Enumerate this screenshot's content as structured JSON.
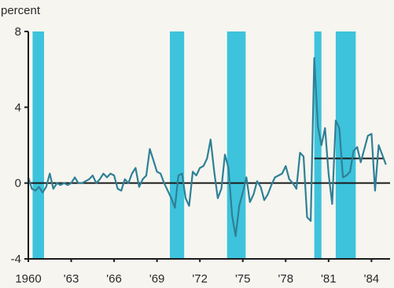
{
  "chart_data": {
    "type": "line",
    "y_unit_label": "percent",
    "xlim": [
      1960,
      1985.3
    ],
    "ylim": [
      -4,
      8
    ],
    "x_ticks": [
      {
        "value": 1960,
        "label": "1960"
      },
      {
        "value": 1963,
        "label": "'63"
      },
      {
        "value": 1966,
        "label": "'66"
      },
      {
        "value": 1969,
        "label": "'69"
      },
      {
        "value": 1972,
        "label": "'72"
      },
      {
        "value": 1975,
        "label": "'75"
      },
      {
        "value": 1978,
        "label": "'78"
      },
      {
        "value": 1981,
        "label": "'81"
      },
      {
        "value": 1984,
        "label": "'84"
      }
    ],
    "y_ticks": [
      {
        "value": -4,
        "label": "-4"
      },
      {
        "value": 0,
        "label": "0"
      },
      {
        "value": 4,
        "label": "4"
      },
      {
        "value": 8,
        "label": "8"
      }
    ],
    "shaded_periods": [
      [
        1960.3,
        1961.1
      ],
      [
        1969.9,
        1970.9
      ],
      [
        1973.9,
        1975.2
      ],
      [
        1980.0,
        1980.5
      ],
      [
        1981.5,
        1982.9
      ]
    ],
    "reference_lines": [
      {
        "y": 0,
        "x_start": 1960,
        "x_end": 1985.3
      },
      {
        "y": 1.3,
        "x_start": 1980.0,
        "x_end": 1984.9
      }
    ],
    "series": [
      {
        "x": [
          1960.0,
          1960.25,
          1960.5,
          1960.75,
          1961.0,
          1961.25,
          1961.5,
          1961.75,
          1962.0,
          1962.25,
          1962.5,
          1962.75,
          1963.0,
          1963.25,
          1963.5,
          1963.75,
          1964.0,
          1964.25,
          1964.5,
          1964.75,
          1965.0,
          1965.25,
          1965.5,
          1965.75,
          1966.0,
          1966.25,
          1966.5,
          1966.75,
          1967.0,
          1967.25,
          1967.5,
          1967.75,
          1968.0,
          1968.25,
          1968.5,
          1968.75,
          1969.0,
          1969.25,
          1969.5,
          1969.75,
          1970.0,
          1970.25,
          1970.5,
          1970.75,
          1971.0,
          1971.25,
          1971.5,
          1971.75,
          1972.0,
          1972.25,
          1972.5,
          1972.75,
          1973.0,
          1973.25,
          1973.5,
          1973.75,
          1974.0,
          1974.25,
          1974.5,
          1974.75,
          1975.0,
          1975.25,
          1975.5,
          1975.75,
          1976.0,
          1976.25,
          1976.5,
          1976.75,
          1977.0,
          1977.25,
          1977.5,
          1977.75,
          1978.0,
          1978.25,
          1978.5,
          1978.75,
          1979.0,
          1979.25,
          1979.5,
          1979.75,
          1980.0,
          1980.25,
          1980.5,
          1980.75,
          1981.0,
          1981.25,
          1981.5,
          1981.75,
          1982.0,
          1982.25,
          1982.5,
          1982.75,
          1983.0,
          1983.25,
          1983.5,
          1983.75,
          1984.0,
          1984.25,
          1984.5,
          1984.75,
          1985.0
        ],
        "values": [
          0.3,
          -0.3,
          -0.4,
          -0.2,
          -0.5,
          -0.2,
          0.5,
          -0.3,
          0.0,
          -0.1,
          0.0,
          -0.1,
          0.0,
          0.3,
          0.0,
          0.0,
          0.1,
          0.2,
          0.4,
          0.0,
          0.2,
          0.5,
          0.3,
          0.5,
          0.4,
          -0.3,
          -0.4,
          0.2,
          0.0,
          0.5,
          0.8,
          -0.2,
          0.2,
          0.4,
          1.8,
          1.2,
          0.6,
          0.5,
          0.0,
          -0.4,
          -0.8,
          -1.3,
          0.4,
          0.5,
          -0.8,
          -1.2,
          0.6,
          0.4,
          0.8,
          0.9,
          1.3,
          2.3,
          0.6,
          -0.8,
          -0.3,
          1.5,
          0.8,
          -1.7,
          -2.8,
          -1.2,
          -0.5,
          0.3,
          -1.0,
          -0.6,
          0.1,
          -0.2,
          -0.9,
          -0.6,
          -0.1,
          0.3,
          0.4,
          0.5,
          0.9,
          0.2,
          0.0,
          -0.3,
          1.6,
          1.4,
          -1.8,
          -2.0,
          6.6,
          3.0,
          2.0,
          2.9,
          0.5,
          -1.1,
          3.3,
          2.9,
          0.3,
          0.4,
          0.6,
          1.7,
          1.9,
          1.1,
          1.8,
          2.5,
          2.6,
          -0.4,
          2.0,
          1.5,
          1.0
        ]
      }
    ],
    "colors": {
      "shade": "#3ec3dc",
      "line": "#2e8096",
      "axis": "#1b1b1b",
      "background": "#f6f5f0"
    }
  }
}
